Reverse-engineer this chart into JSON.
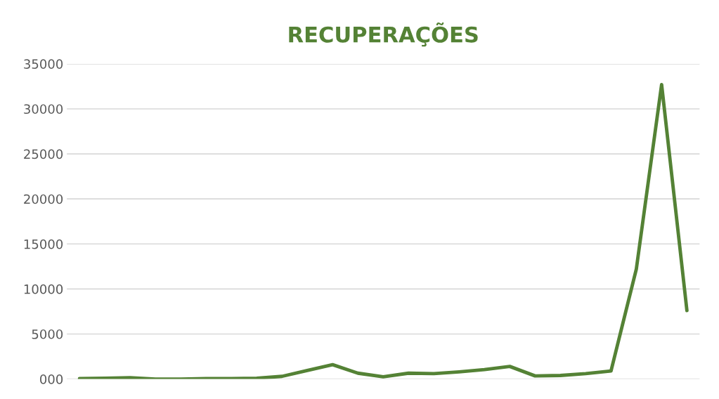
{
  "chart_data": {
    "type": "line",
    "title": "RECUPERAÇÕES",
    "categories": [
      null,
      null,
      null,
      null,
      null,
      null,
      null,
      null,
      null,
      null,
      null,
      null,
      null,
      null,
      null,
      null,
      null,
      null,
      null,
      null,
      null,
      null,
      null,
      null,
      null
    ],
    "series": [
      {
        "color": "#548235",
        "values": [
          50,
          100,
          150,
          0,
          0,
          50,
          50,
          100,
          300,
          950,
          1600,
          650,
          250,
          650,
          600,
          800,
          1050,
          1400,
          350,
          400,
          600,
          900,
          12200,
          32700,
          7600
        ]
      }
    ],
    "ylim": [
      0,
      35000
    ],
    "yticks": [
      {
        "value": 0,
        "label": "000"
      },
      5000,
      10000,
      15000,
      20000,
      25000,
      30000,
      35000
    ],
    "grid": "y",
    "tick_labels": "y",
    "marker": "none",
    "line_style": "solid",
    "legend": false
  }
}
